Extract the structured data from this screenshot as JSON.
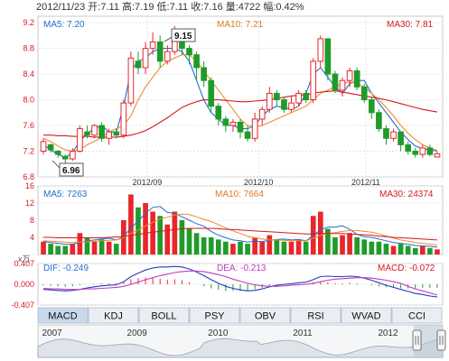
{
  "header": {
    "date": "2012/11/23",
    "open_label": "开:",
    "open": "7.11",
    "high_label": "高:",
    "high": "7.19",
    "low_label": "低:",
    "low": "7.11",
    "close_label": "收:",
    "close": "7.16",
    "volume_label": "量:",
    "volume": "4722",
    "change_label": "幅:",
    "change": "0.42%"
  },
  "price_panel": {
    "ma5_label": "MA5: 7.20",
    "ma10_label": "MA10: 7.21",
    "ma30_label": "MA30: 7.81",
    "high_marker": "9.15",
    "low_marker": "6.96",
    "ticks": [
      "9.2",
      "8.8",
      "8.4",
      "8.0",
      "7.6",
      "7.2",
      "6.8"
    ],
    "dates": [
      "2012/09",
      "2012/10",
      "2012/11"
    ]
  },
  "volume_panel": {
    "ma5_label": "MA5: 7263",
    "ma10_label": "MA10: 7664",
    "ma30_label": "MA30: 24374",
    "ticks": [
      "16",
      "12",
      "8",
      "4"
    ],
    "unit": "x万"
  },
  "macd_panel": {
    "dif_label": "DIF: -0.249",
    "dea_label": "DEA: -0.213",
    "macd_label": "MACD: -0.072",
    "ticks": [
      "0.407",
      "0.000",
      "-0.407"
    ]
  },
  "tabs": [
    "MACD",
    "KDJ",
    "BOLL",
    "PSY",
    "OBV",
    "RSI",
    "WVAD",
    "CCI"
  ],
  "active_tab": "MACD",
  "timeline": {
    "years": [
      "2007",
      "2009",
      "2010",
      "2011",
      "2012"
    ]
  },
  "colors": {
    "up": "#e8262b",
    "down": "#1f9b2a",
    "ma5": "#1f6fd0",
    "ma10": "#f08a2b",
    "ma30": "#d71920"
  },
  "chart_data": [
    {
      "type": "candlestick",
      "title": "",
      "ylim": [
        6.8,
        9.3
      ],
      "series": [
        {
          "name": "MA5",
          "values": [
            7.3,
            7.22,
            7.15,
            7.1,
            7.18,
            7.35,
            7.48,
            7.55,
            7.6,
            7.5,
            7.5,
            7.9,
            8.45,
            8.6,
            8.65,
            8.75,
            8.8,
            8.8,
            8.8,
            8.75,
            8.6,
            8.3,
            8.0,
            7.8,
            7.7,
            7.6,
            7.6,
            7.55,
            7.55,
            7.6,
            7.75,
            7.85,
            7.9,
            7.88,
            7.85,
            7.9,
            8.1,
            8.4,
            8.5,
            8.35,
            8.2,
            8.1,
            8.25,
            8.3,
            8.3,
            8.1,
            7.95,
            7.8,
            7.65,
            7.5,
            7.38,
            7.28,
            7.24,
            7.22,
            7.2
          ]
        },
        {
          "name": "MA10",
          "values": [
            7.4,
            7.35,
            7.28,
            7.22,
            7.2,
            7.22,
            7.3,
            7.35,
            7.42,
            7.5,
            7.55,
            7.6,
            7.75,
            8.0,
            8.2,
            8.35,
            8.5,
            8.6,
            8.65,
            8.7,
            8.7,
            8.6,
            8.45,
            8.3,
            8.15,
            8.0,
            7.85,
            7.7,
            7.6,
            7.58,
            7.6,
            7.65,
            7.7,
            7.75,
            7.8,
            7.85,
            7.9,
            8.0,
            8.1,
            8.15,
            8.2,
            8.25,
            8.28,
            8.25,
            8.2,
            8.1,
            8.0,
            7.88,
            7.75,
            7.6,
            7.48,
            7.38,
            7.3,
            7.25,
            7.21
          ]
        },
        {
          "name": "MA30",
          "values": [
            7.45,
            7.45,
            7.44,
            7.44,
            7.43,
            7.43,
            7.43,
            7.42,
            7.42,
            7.42,
            7.42,
            7.43,
            7.45,
            7.48,
            7.52,
            7.58,
            7.65,
            7.72,
            7.8,
            7.88,
            7.93,
            7.97,
            8.0,
            8.0,
            8.0,
            7.99,
            7.98,
            7.97,
            7.97,
            7.98,
            7.99,
            8.0,
            8.02,
            8.04,
            8.06,
            8.07,
            8.08,
            8.1,
            8.12,
            8.13,
            8.14,
            8.12,
            8.1,
            8.08,
            8.06,
            8.04,
            8.02,
            8.0,
            7.97,
            7.94,
            7.91,
            7.88,
            7.85,
            7.83,
            7.81
          ]
        }
      ],
      "candles": [
        [
          7.2,
          7.35,
          7.4,
          7.15
        ],
        [
          7.3,
          7.22,
          7.32,
          7.18
        ],
        [
          7.2,
          7.15,
          7.22,
          7.1
        ],
        [
          7.12,
          7.08,
          7.15,
          6.96
        ],
        [
          7.08,
          7.2,
          7.25,
          7.05
        ],
        [
          7.2,
          7.55,
          7.6,
          7.18
        ],
        [
          7.5,
          7.45,
          7.6,
          7.4
        ],
        [
          7.45,
          7.6,
          7.62,
          7.4
        ],
        [
          7.6,
          7.4,
          7.65,
          7.35
        ],
        [
          7.4,
          7.5,
          7.55,
          7.3
        ],
        [
          7.5,
          7.45,
          7.55,
          7.4
        ],
        [
          7.45,
          7.95,
          8.0,
          7.4
        ],
        [
          7.95,
          8.65,
          8.75,
          7.9
        ],
        [
          8.6,
          8.5,
          8.75,
          8.4
        ],
        [
          8.5,
          8.8,
          8.9,
          8.4
        ],
        [
          8.8,
          8.9,
          9.05,
          8.7
        ],
        [
          8.9,
          8.6,
          9.0,
          8.5
        ],
        [
          8.6,
          8.75,
          8.85,
          8.55
        ],
        [
          8.75,
          9.05,
          9.15,
          8.7
        ],
        [
          9.0,
          8.8,
          9.05,
          8.7
        ],
        [
          8.8,
          8.7,
          8.85,
          8.55
        ],
        [
          8.7,
          8.5,
          8.75,
          8.3
        ],
        [
          8.5,
          8.3,
          8.6,
          8.2
        ],
        [
          8.3,
          7.9,
          8.35,
          7.8
        ],
        [
          7.9,
          7.7,
          7.95,
          7.6
        ],
        [
          7.7,
          7.6,
          7.75,
          7.5
        ],
        [
          7.6,
          7.65,
          7.7,
          7.5
        ],
        [
          7.65,
          7.5,
          7.7,
          7.4
        ],
        [
          7.5,
          7.4,
          7.6,
          7.35
        ],
        [
          7.4,
          7.7,
          7.8,
          7.35
        ],
        [
          7.7,
          7.85,
          7.9,
          7.6
        ],
        [
          7.85,
          8.1,
          8.2,
          7.8
        ],
        [
          8.1,
          8.0,
          8.15,
          7.9
        ],
        [
          8.0,
          7.85,
          8.05,
          7.8
        ],
        [
          7.85,
          7.95,
          8.05,
          7.8
        ],
        [
          7.95,
          8.1,
          8.15,
          7.9
        ],
        [
          8.1,
          8.0,
          8.15,
          7.95
        ],
        [
          8.0,
          8.6,
          8.65,
          7.95
        ],
        [
          8.6,
          8.95,
          9.0,
          8.5
        ],
        [
          8.95,
          8.4,
          8.95,
          8.3
        ],
        [
          8.4,
          8.15,
          8.45,
          8.1
        ],
        [
          8.15,
          8.3,
          8.35,
          8.05
        ],
        [
          8.3,
          8.45,
          8.5,
          8.2
        ],
        [
          8.45,
          8.2,
          8.5,
          8.15
        ],
        [
          8.2,
          8.0,
          8.25,
          7.95
        ],
        [
          8.0,
          7.8,
          8.05,
          7.7
        ],
        [
          7.8,
          7.55,
          7.85,
          7.5
        ],
        [
          7.55,
          7.4,
          7.6,
          7.3
        ],
        [
          7.4,
          7.5,
          7.55,
          7.35
        ],
        [
          7.5,
          7.3,
          7.5,
          7.2
        ],
        [
          7.3,
          7.2,
          7.35,
          7.15
        ],
        [
          7.2,
          7.15,
          7.25,
          7.1
        ],
        [
          7.15,
          7.25,
          7.3,
          7.1
        ],
        [
          7.25,
          7.15,
          7.3,
          7.12
        ],
        [
          7.11,
          7.16,
          7.19,
          7.11
        ]
      ]
    },
    {
      "type": "bar",
      "title": "",
      "ylim": [
        0,
        16
      ],
      "values": [
        3,
        2.5,
        2,
        2,
        2.5,
        5,
        4,
        3,
        3.5,
        3,
        2.5,
        8,
        14,
        11,
        12,
        10,
        9,
        7,
        10,
        8,
        6,
        5,
        4,
        4,
        3.5,
        3,
        2.5,
        3,
        2.5,
        4,
        3,
        4.5,
        3.5,
        3,
        3,
        3.5,
        3,
        9,
        10,
        6,
        4,
        4.5,
        5,
        4,
        3.5,
        3,
        3,
        2.5,
        2,
        2.5,
        2,
        1.5,
        2,
        1.5,
        1.2
      ],
      "series": [
        {
          "name": "MA5",
          "values": [
            3,
            2.8,
            2.6,
            2.4,
            2.4,
            2.8,
            3.2,
            3.4,
            3.6,
            3.8,
            3.4,
            4.2,
            6.2,
            7.8,
            9.6,
            11,
            11.2,
            9.8,
            9.6,
            8.8,
            8,
            7.2,
            6.6,
            5.4,
            4.5,
            3.9,
            3.4,
            3.2,
            2.9,
            3.1,
            3,
            3.3,
            3.5,
            3.6,
            3.4,
            3.5,
            3.2,
            4.4,
            5.8,
            6.4,
            6.4,
            6.7,
            5.9,
            4.7,
            4.2,
            4,
            3.6,
            3.2,
            2.8,
            2.6,
            2.4,
            2.1,
            2,
            1.9,
            1.7
          ]
        },
        {
          "name": "MA10",
          "values": [
            3.2,
            3.1,
            3,
            2.9,
            2.8,
            2.9,
            3,
            3.1,
            3.2,
            3.3,
            3.4,
            3.9,
            4.9,
            5.7,
            6.7,
            7.5,
            8.3,
            8.7,
            9.2,
            9.4,
            9.3,
            8.8,
            8.2,
            7.7,
            7.0,
            6.2,
            5.5,
            4.9,
            4.3,
            3.9,
            3.6,
            3.4,
            3.4,
            3.3,
            3.2,
            3.2,
            3.2,
            3.8,
            4.5,
            4.9,
            5.1,
            5.4,
            5.6,
            5.6,
            5.4,
            5.2,
            4.8,
            4.3,
            3.8,
            3.4,
            3.1,
            2.8,
            2.6,
            2.4,
            2.2
          ]
        },
        {
          "name": "MA30",
          "values": [
            4,
            4,
            3.9,
            3.9,
            3.9,
            3.9,
            3.9,
            3.9,
            3.9,
            4,
            4.1,
            4.2,
            4.5,
            4.7,
            5,
            5.2,
            5.4,
            5.6,
            5.8,
            6,
            6.1,
            6.1,
            6.1,
            6.1,
            6,
            5.9,
            5.8,
            5.7,
            5.6,
            5.5,
            5.4,
            5.3,
            5.2,
            5.1,
            5,
            4.9,
            4.8,
            4.8,
            4.9,
            4.9,
            4.9,
            4.9,
            4.8,
            4.7,
            4.6,
            4.5,
            4.3,
            4.2,
            4,
            3.9,
            3.8,
            3.7,
            3.6,
            3.5,
            3.4
          ]
        }
      ]
    },
    {
      "type": "bar",
      "title": "",
      "ylim": [
        -0.407,
        0.407
      ],
      "values": [
        -0.02,
        -0.03,
        -0.04,
        -0.05,
        -0.04,
        -0.02,
        0,
        0.01,
        0.02,
        0.02,
        0.02,
        0.05,
        0.1,
        0.12,
        0.13,
        0.13,
        0.11,
        0.09,
        0.1,
        0.08,
        0.04,
        0,
        -0.04,
        -0.08,
        -0.11,
        -0.13,
        -0.13,
        -0.13,
        -0.12,
        -0.1,
        -0.07,
        -0.04,
        -0.02,
        -0.01,
        0,
        0.01,
        0.01,
        0.04,
        0.06,
        0.04,
        0.02,
        0.02,
        0.03,
        0.02,
        0,
        -0.02,
        -0.04,
        -0.06,
        -0.07,
        -0.08,
        -0.08,
        -0.08,
        -0.07,
        -0.07,
        -0.07
      ],
      "series": [
        {
          "name": "DIF",
          "values": [
            -0.1,
            -0.11,
            -0.12,
            -0.13,
            -0.12,
            -0.1,
            -0.07,
            -0.05,
            -0.03,
            -0.02,
            -0.01,
            0.05,
            0.15,
            0.22,
            0.28,
            0.32,
            0.34,
            0.34,
            0.35,
            0.34,
            0.3,
            0.24,
            0.17,
            0.09,
            0.02,
            -0.04,
            -0.08,
            -0.11,
            -0.13,
            -0.12,
            -0.09,
            -0.05,
            -0.02,
            0,
            0.01,
            0.03,
            0.04,
            0.09,
            0.15,
            0.16,
            0.15,
            0.15,
            0.16,
            0.15,
            0.12,
            0.08,
            0.03,
            -0.02,
            -0.06,
            -0.1,
            -0.14,
            -0.18,
            -0.2,
            -0.23,
            -0.25
          ]
        },
        {
          "name": "DEA",
          "values": [
            -0.08,
            -0.09,
            -0.09,
            -0.1,
            -0.1,
            -0.1,
            -0.09,
            -0.09,
            -0.08,
            -0.07,
            -0.06,
            -0.04,
            0,
            0.04,
            0.09,
            0.13,
            0.17,
            0.2,
            0.23,
            0.25,
            0.26,
            0.26,
            0.25,
            0.22,
            0.19,
            0.15,
            0.1,
            0.06,
            0.02,
            -0.01,
            -0.03,
            -0.04,
            -0.04,
            -0.03,
            -0.02,
            -0.01,
            0,
            0.02,
            0.05,
            0.08,
            0.1,
            0.11,
            0.12,
            0.13,
            0.13,
            0.12,
            0.1,
            0.08,
            0.05,
            0.02,
            -0.04,
            -0.09,
            -0.13,
            -0.17,
            -0.21
          ]
        }
      ]
    }
  ]
}
